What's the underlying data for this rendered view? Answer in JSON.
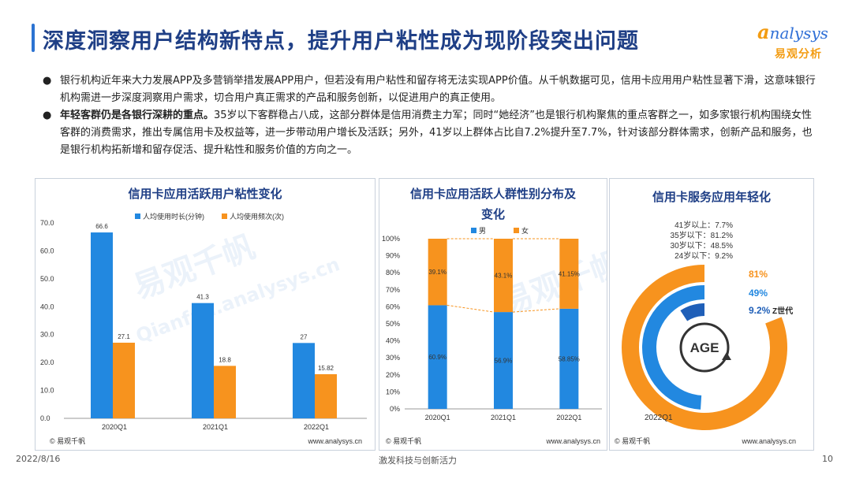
{
  "header": {
    "title": "深度洞察用户结构新特点，提升用户粘性成为现阶段突出问题"
  },
  "logo": {
    "en_a": "a",
    "en_rest": "nalysys",
    "cn": "易观分析"
  },
  "bullets": [
    {
      "bold": "",
      "text": "银行机构近年来大力发展APP及多营销举措发展APP用户，但若没有用户粘性和留存将无法实现APP价值。从千帆数据可见，信用卡应用用户粘性显著下滑，这意味银行机构需进一步深度洞察用户需求，切合用户真正需求的产品和服务创新，以促进用户的真正使用。"
    },
    {
      "bold": "年轻客群仍是各银行深耕的重点。",
      "text": "35岁以下客群稳占八成，这部分群体是信用消费主力军；同时“她经济”也是银行机构聚焦的重点客群之一，如多家银行机构围绕女性客群的消费需求，推出专属信用卡及权益等，进一步带动用户增长及活跃；另外，41岁以上群体占比自7.2%提升至7.7%，针对该部分群体需求，创新产品和服务，也是银行机构拓新增和留存促活、提升粘性和服务价值的方向之一。"
    }
  ],
  "chart_data": [
    {
      "type": "bar",
      "title": "信用卡应用活跃用户粘性变化",
      "categories": [
        "2020Q1",
        "2021Q1",
        "2022Q1"
      ],
      "series": [
        {
          "name": "人均使用时长(分钟)",
          "values": [
            66.6,
            41.3,
            27
          ],
          "labels": [
            "66.6",
            "41.3",
            "27"
          ],
          "color": "#2288e0"
        },
        {
          "name": "人均使用频次(次)",
          "values": [
            27.1,
            18.8,
            15.82
          ],
          "labels": [
            "27.1",
            "18.8",
            "15.82"
          ],
          "color": "#f7931e"
        }
      ],
      "yticks": [
        "0.0",
        "10.0",
        "20.0",
        "30.0",
        "40.0",
        "50.0",
        "60.0",
        "70.0"
      ],
      "ylim": [
        0,
        70
      ],
      "legend": "top",
      "source": "© 易观千帆",
      "url": "www.analysys.cn"
    },
    {
      "type": "bar",
      "stacked": true,
      "title_lines": [
        "信用卡应用活跃人群性别分布及",
        "变化"
      ],
      "categories": [
        "2020Q1",
        "2021Q1",
        "2022Q1"
      ],
      "series": [
        {
          "name": "男",
          "values": [
            60.9,
            56.9,
            58.85
          ],
          "labels": [
            "60.9%",
            "56.9%",
            "58.85%"
          ],
          "color": "#2288e0"
        },
        {
          "name": "女",
          "values": [
            39.1,
            43.1,
            41.15
          ],
          "labels": [
            "39.1%",
            "43.1%",
            "41.15%"
          ],
          "color": "#f7931e"
        }
      ],
      "yticks": [
        "0%",
        "10%",
        "20%",
        "30%",
        "40%",
        "50%",
        "60%",
        "70%",
        "80%",
        "90%",
        "100%"
      ],
      "ylim": [
        0,
        100
      ],
      "legend": "top",
      "source": "© 易观千帆",
      "url": "www.analysys.cn"
    },
    {
      "type": "pie",
      "subtype": "radial-bar",
      "title": "信用卡服务应用年轻化",
      "period": "2022Q1",
      "items": [
        {
          "label": "41岁以上",
          "value": 7.7,
          "text": "41岁以上：7.7%"
        },
        {
          "label": "35岁以下",
          "value": 81.2,
          "text": "35岁以下：81.2%"
        },
        {
          "label": "30岁以下",
          "value": 48.5,
          "text": "30岁以下：48.5%"
        },
        {
          "label": "24岁以下",
          "value": 9.2,
          "text": "24岁以下：9.2%"
        }
      ],
      "rings": [
        {
          "value": 81,
          "label": "81%",
          "color": "#f7931e"
        },
        {
          "value": 49,
          "label": "49%",
          "color": "#2288e0"
        },
        {
          "value": 9.2,
          "label": "9.2%",
          "color": "#1f5fb8",
          "tag": "Z世代"
        }
      ],
      "center_text": "AGE",
      "source": "© 易观千帆",
      "url": "www.analysys.cn"
    }
  ],
  "footer": {
    "date": "2022/8/16",
    "slogan": "激发科技与创新活力",
    "page": "10"
  },
  "watermark": {
    "cn": "易观千帆",
    "en": "Qianfan.analysys.cn"
  }
}
